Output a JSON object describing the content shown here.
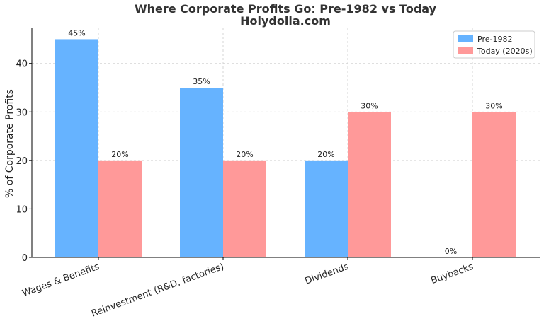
{
  "chart_data": {
    "type": "bar",
    "title": "Where Corporate Profits Go: Pre-1982 vs Today",
    "subtitle": "Holydolla.com",
    "xlabel": "",
    "ylabel": "% of Corporate Profits",
    "categories": [
      "Wages & Benefits",
      "Reinvestment (R&D, factories)",
      "Dividends",
      "Buybacks"
    ],
    "series": [
      {
        "name": "Pre-1982",
        "values": [
          45,
          35,
          20,
          0
        ],
        "color": "#66b3ff"
      },
      {
        "name": "Today (2020s)",
        "values": [
          20,
          20,
          30,
          30
        ],
        "color": "#ff9999"
      }
    ],
    "data_labels": [
      [
        "45%",
        "35%",
        "20%",
        "0%"
      ],
      [
        "20%",
        "20%",
        "30%",
        "30%"
      ]
    ],
    "ylim": [
      0,
      47.25
    ],
    "yticks": [
      0,
      10,
      20,
      30,
      40
    ],
    "grid": true,
    "legend_position": "top-right"
  }
}
